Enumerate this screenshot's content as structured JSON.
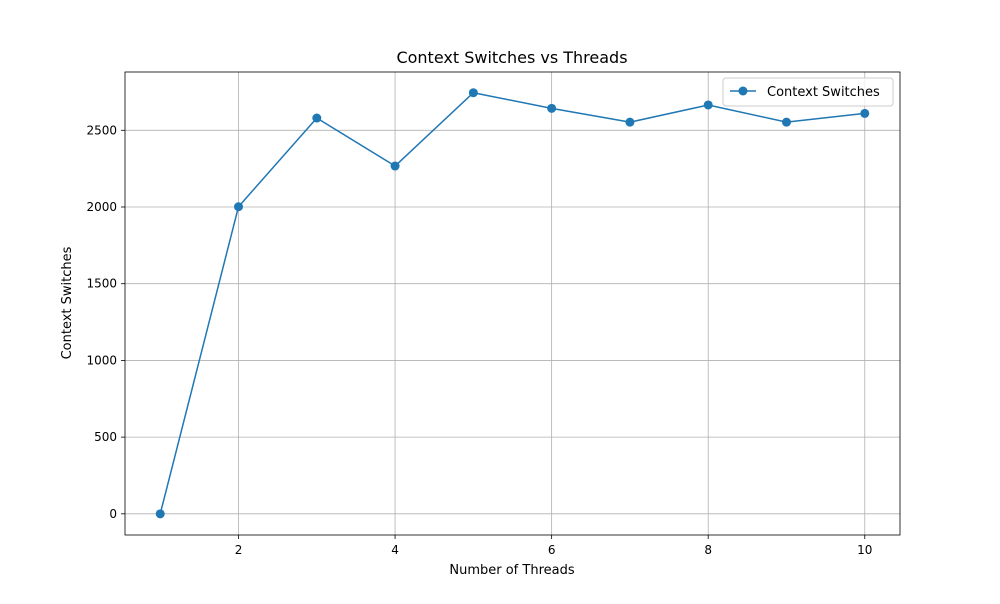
{
  "chart_data": {
    "type": "line",
    "title": "Context Switches vs Threads",
    "xlabel": "Number of Threads",
    "ylabel": "Context Switches",
    "xlim": [
      0.55,
      10.45
    ],
    "ylim": [
      -138,
      2880
    ],
    "xticks": [
      2,
      4,
      6,
      8,
      10
    ],
    "yticks": [
      0,
      500,
      1000,
      1500,
      2000,
      2500
    ],
    "grid": true,
    "legend_position": "top-right",
    "series": [
      {
        "name": "Context Switches",
        "color": "#1f77b4",
        "marker": "circle",
        "x": [
          1,
          2,
          3,
          4,
          5,
          6,
          7,
          8,
          9,
          10
        ],
        "y": [
          0,
          2002,
          2580,
          2267,
          2745,
          2643,
          2553,
          2665,
          2553,
          2610
        ]
      }
    ]
  }
}
